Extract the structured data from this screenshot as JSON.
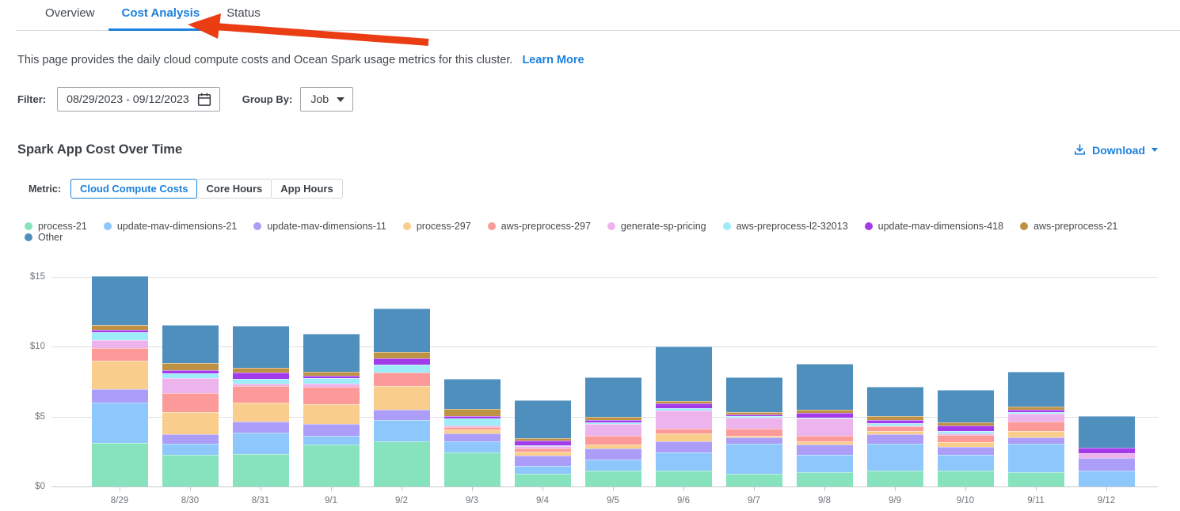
{
  "tabs": [
    {
      "label": "Overview",
      "active": false
    },
    {
      "label": "Cost Analysis",
      "active": true
    },
    {
      "label": "Status",
      "active": false
    }
  ],
  "annotation": {
    "type": "red-arrow",
    "points_to": "Cost Analysis",
    "color": "#EB3D14"
  },
  "description": {
    "text": "This page provides the daily cloud compute costs and Ocean Spark usage metrics for this cluster.",
    "link_label": "Learn More"
  },
  "filters": {
    "filter_label": "Filter:",
    "date_range_value": "08/29/2023  -  09/12/2023",
    "group_by_label": "Group By:",
    "group_by_value": "Job"
  },
  "section": {
    "title": "Spark App Cost Over Time",
    "download_label": "Download"
  },
  "metric": {
    "label": "Metric:",
    "options": [
      {
        "label": "Cloud Compute Costs",
        "active": true
      },
      {
        "label": "Core Hours",
        "active": false
      },
      {
        "label": "App Hours",
        "active": false
      }
    ]
  },
  "colors": {
    "accent": "#1C80DC",
    "arrow": "#EB3D14",
    "axis_text": "#71767B"
  },
  "chart_data": {
    "type": "bar",
    "stacked": true,
    "title": "Spark App Cost Over Time",
    "ylabel": "Cloud Compute Costs ($)",
    "ylim": [
      0,
      15.4
    ],
    "grid": true,
    "legend_position": "top",
    "yticks": [
      {
        "label": "$0",
        "value": 0
      },
      {
        "label": "$5",
        "value": 5
      },
      {
        "label": "$10",
        "value": 10
      },
      {
        "label": "$15",
        "value": 15
      }
    ],
    "categories": [
      "8/29",
      "8/30",
      "8/31",
      "9/1",
      "9/2",
      "9/3",
      "9/4",
      "9/5",
      "9/6",
      "9/7",
      "9/8",
      "9/9",
      "9/10",
      "9/11",
      "9/12"
    ],
    "series": [
      {
        "name": "process-21",
        "color": "#86E3BE",
        "values": [
          3.1,
          2.27,
          2.33,
          2.98,
          3.21,
          2.45,
          0.9,
          1.11,
          1.16,
          0.88,
          1.01,
          1.11,
          1.11,
          1.01,
          0.0
        ]
      },
      {
        "name": "update-mav-dimensions-21",
        "color": "#8DC7FB",
        "values": [
          2.9,
          0.81,
          1.5,
          0.66,
          1.52,
          0.79,
          0.6,
          0.84,
          1.26,
          2.2,
          1.28,
          1.93,
          1.18,
          2.03,
          1.13
        ]
      },
      {
        "name": "update-mav-dimensions-11",
        "color": "#AB9DF8",
        "values": [
          0.95,
          0.66,
          0.84,
          0.84,
          0.75,
          0.58,
          0.73,
          0.79,
          0.81,
          0.41,
          0.69,
          0.69,
          0.56,
          0.45,
          0.91
        ]
      },
      {
        "name": "process-297",
        "color": "#F9CE8D",
        "values": [
          2.05,
          1.6,
          1.35,
          1.41,
          1.69,
          0.28,
          0.26,
          0.24,
          0.56,
          0.15,
          0.24,
          0.24,
          0.32,
          0.49,
          0.0
        ]
      },
      {
        "name": "aws-preprocess-297",
        "color": "#FC9999",
        "values": [
          0.9,
          1.37,
          1.18,
          1.22,
          1.01,
          0.15,
          0.24,
          0.66,
          0.32,
          0.47,
          0.41,
          0.32,
          0.51,
          0.64,
          0.0
        ]
      },
      {
        "name": "generate-sp-pricing",
        "color": "#EDB3ED",
        "values": [
          0.55,
          1.03,
          0.15,
          0.28,
          0.0,
          0.09,
          0.14,
          0.81,
          1.31,
          0.81,
          1.22,
          0.1,
          0.1,
          0.62,
          0.34
        ]
      },
      {
        "name": "aws-preprocess-l2-32013",
        "color": "#9EEBFA",
        "values": [
          0.6,
          0.38,
          0.38,
          0.38,
          0.56,
          0.53,
          0.1,
          0.13,
          0.19,
          0.13,
          0.1,
          0.13,
          0.19,
          0.08,
          0.0
        ]
      },
      {
        "name": "update-mav-dimensions-418",
        "color": "#A43BEB",
        "values": [
          0.17,
          0.23,
          0.45,
          0.15,
          0.43,
          0.19,
          0.32,
          0.19,
          0.32,
          0.09,
          0.34,
          0.24,
          0.38,
          0.19,
          0.42
        ]
      },
      {
        "name": "aws-preprocess-21",
        "color": "#BE9245",
        "values": [
          0.33,
          0.47,
          0.34,
          0.32,
          0.47,
          0.51,
          0.17,
          0.23,
          0.19,
          0.19,
          0.19,
          0.26,
          0.23,
          0.24,
          0.0
        ]
      },
      {
        "name": "Other",
        "color": "#4E8FBE",
        "values": [
          3.5,
          2.76,
          2.99,
          2.68,
          3.09,
          2.13,
          2.7,
          2.81,
          3.88,
          2.47,
          3.28,
          2.12,
          2.32,
          2.44,
          2.26
        ]
      }
    ]
  }
}
